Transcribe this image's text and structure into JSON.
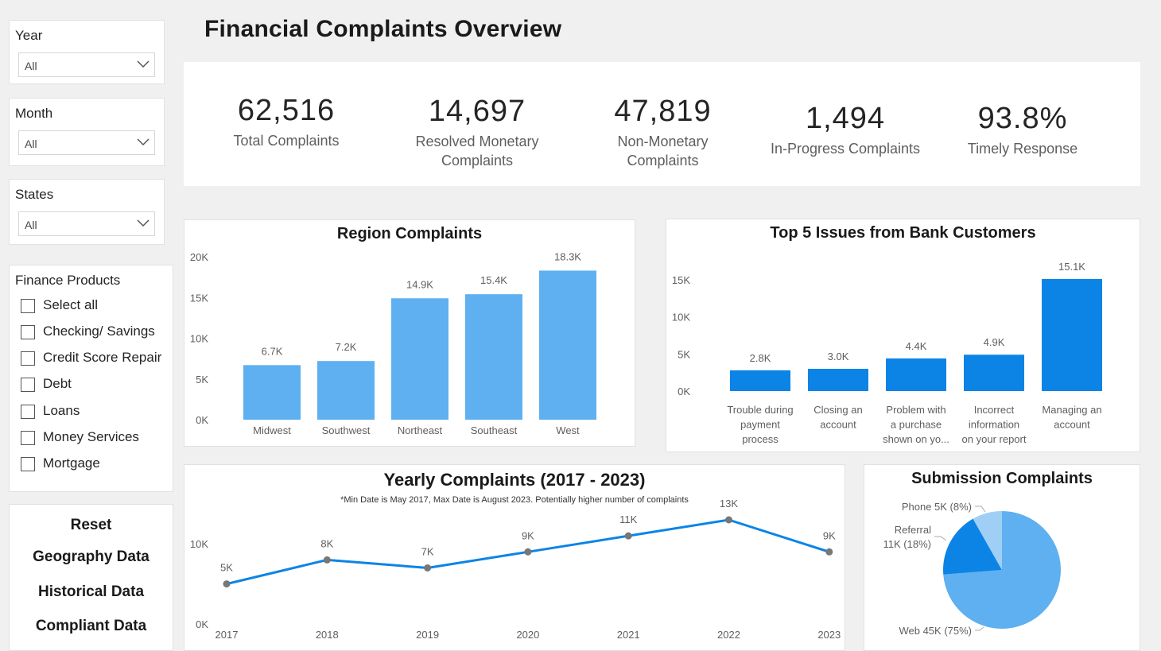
{
  "page_title": "Financial Complaints Overview",
  "filters": {
    "year": {
      "label": "Year",
      "value": "All"
    },
    "month": {
      "label": "Month",
      "value": "All"
    },
    "states": {
      "label": "States",
      "value": "All"
    }
  },
  "finance_products": {
    "title": "Finance Products",
    "items": [
      "Select all",
      "Checking/ Savings",
      "Credit Score Repair",
      "Debt",
      "Loans",
      "Money Services",
      "Mortgage"
    ]
  },
  "nav": {
    "reset": "Reset",
    "geography": "Geography Data",
    "historical": "Historical Data",
    "compliant": "Compliant Data"
  },
  "kpis": [
    {
      "value": "62,516",
      "label1": "Total Complaints",
      "label2": ""
    },
    {
      "value": "14,697",
      "label1": "Resolved Monetary",
      "label2": "Complaints"
    },
    {
      "value": "47,819",
      "label1": "Non-Monetary",
      "label2": "Complaints"
    },
    {
      "value": "1,494",
      "label1": "In-Progress Complaints",
      "label2": ""
    },
    {
      "value": "93.8%",
      "label1": "Timely Response",
      "label2": ""
    }
  ],
  "colors": {
    "light_blue": "#5eb0f0",
    "blue": "#0b84e6",
    "pale_blue": "#9fcff5",
    "point": "#777777"
  },
  "chart_data": [
    {
      "id": "region",
      "type": "bar",
      "title": "Region Complaints",
      "categories": [
        "Midwest",
        "Southwest",
        "Northeast",
        "Southeast",
        "West"
      ],
      "values": [
        6700,
        7200,
        14900,
        15400,
        18300
      ],
      "value_labels": [
        "6.7K",
        "7.2K",
        "14.9K",
        "15.4K",
        "18.3K"
      ],
      "yticks": [
        0,
        5000,
        10000,
        15000,
        20000
      ],
      "ytick_labels": [
        "0K",
        "5K",
        "10K",
        "15K",
        "20K"
      ],
      "ylim": [
        0,
        20000
      ]
    },
    {
      "id": "issues",
      "type": "bar",
      "title": "Top 5 Issues from Bank Customers",
      "categories": [
        [
          "Trouble during",
          "payment",
          "process"
        ],
        [
          "Closing an",
          "account"
        ],
        [
          "Problem with",
          "a purchase",
          "shown on yo..."
        ],
        [
          "Incorrect",
          "information",
          "on your report"
        ],
        [
          "Managing an",
          "account"
        ]
      ],
      "values": [
        2800,
        3000,
        4400,
        4900,
        15100
      ],
      "value_labels": [
        "2.8K",
        "3.0K",
        "4.4K",
        "4.9K",
        "15.1K"
      ],
      "yticks": [
        0,
        5000,
        10000,
        15000
      ],
      "ytick_labels": [
        "0K",
        "5K",
        "10K",
        "15K"
      ],
      "ylim": [
        0,
        15100
      ]
    },
    {
      "id": "yearly",
      "type": "line",
      "title": "Yearly Complaints (2017 - 2023)",
      "subtitle": "*Min Date is May 2017, Max Date is August 2023. Potentially higher number of complaints",
      "x": [
        "2017",
        "2018",
        "2019",
        "2020",
        "2021",
        "2022",
        "2023"
      ],
      "values": [
        5000,
        8000,
        7000,
        9000,
        11000,
        13000,
        9000
      ],
      "value_labels": [
        "5K",
        "8K",
        "7K",
        "9K",
        "11K",
        "13K",
        "9K"
      ],
      "yticks": [
        0,
        10000
      ],
      "ytick_labels": [
        "0K",
        "10K"
      ],
      "ylim": [
        0,
        13000
      ]
    },
    {
      "id": "submission",
      "type": "pie",
      "title": "Submission Complaints",
      "slices": [
        {
          "name": "Web",
          "value": 45000,
          "percent": 75,
          "label": "Web 45K (75%)"
        },
        {
          "name": "Referral",
          "value": 11000,
          "percent": 18,
          "label1": "Referral",
          "label2": "11K (18%)"
        },
        {
          "name": "Phone",
          "value": 5000,
          "percent": 8,
          "label": "Phone 5K (8%)"
        }
      ]
    }
  ]
}
